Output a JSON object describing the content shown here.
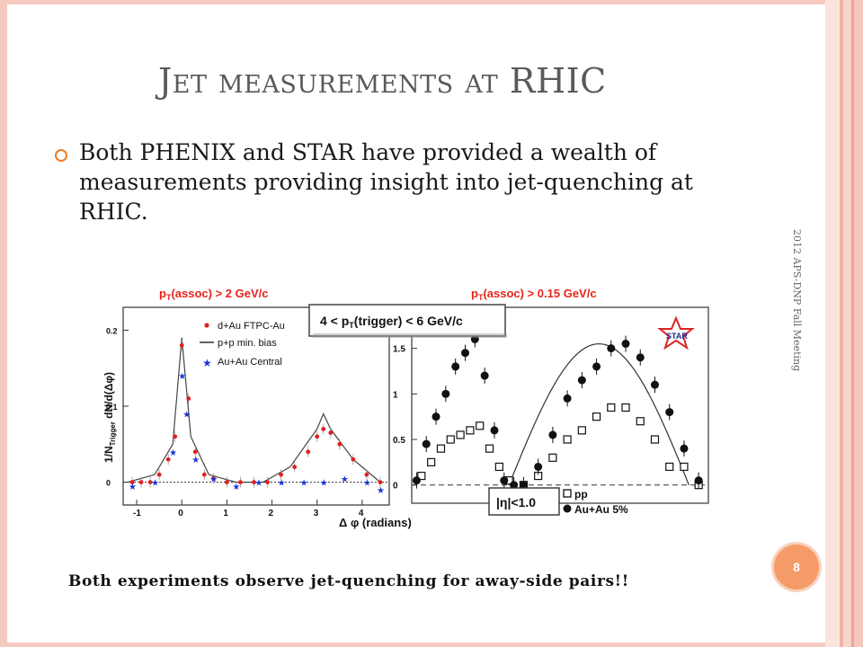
{
  "slide": {
    "title_first": "J",
    "title_rest": "et measurements at",
    "title_last": "RHIC",
    "bullet": "Both PHENIX and STAR have provided a wealth of measurements providing insight into jet-quenching at RHIC.",
    "side_footer": "2012 APS-DNP Fall Meeting",
    "page_number": "8",
    "caption": "Both experiments observe jet-quenching for away-side pairs!!"
  },
  "figure": {
    "left_panel_title": "p_T(assoc) > 2 GeV/c",
    "right_panel_title": "p_T(assoc) > 0.15 GeV/c",
    "trigger_box": "4 < p_T(trigger) < 6 GeV/c",
    "x_axis_label": "Δ φ (radians)",
    "left_y_label": "1/N_Trigger dN/d(Δφ)",
    "left_legend": [
      "d+Au FTPC-Au",
      "p+p min. bias",
      "Au+Au Central"
    ],
    "right_legend": [
      "pp",
      "Au+Au 5%"
    ],
    "eta_label": "|η|<1.0",
    "star_logo": "STAR",
    "colors": {
      "title_red": "#e8231a",
      "dAu": "#e02020",
      "AuAu_central": "#1a36d8",
      "accent_orange": "#f07a26"
    }
  },
  "chart_data": [
    {
      "type": "scatter",
      "title": "pT(assoc) > 2 GeV/c",
      "xlabel": "Δ φ (radians)",
      "ylabel": "1/N_Trigger dN/d(Δφ)",
      "xlim": [
        -1.3,
        4.6
      ],
      "ylim": [
        -0.03,
        0.23
      ],
      "x_ticks": [
        "-1",
        "0",
        "1",
        "2",
        "3",
        "4"
      ],
      "y_ticks": [
        "0",
        "0.1",
        "0.2"
      ],
      "series": [
        {
          "name": "d+Au FTPC-Au",
          "points": [
            [
              -1.1,
              0.0
            ],
            [
              -0.9,
              0.0
            ],
            [
              -0.7,
              0.0
            ],
            [
              -0.5,
              0.01
            ],
            [
              -0.3,
              0.03
            ],
            [
              -0.15,
              0.06
            ],
            [
              0.0,
              0.18
            ],
            [
              0.15,
              0.11
            ],
            [
              0.3,
              0.04
            ],
            [
              0.5,
              0.01
            ],
            [
              0.7,
              0.005
            ],
            [
              1.0,
              0.0
            ],
            [
              1.3,
              0.0
            ],
            [
              1.6,
              0.0
            ],
            [
              1.9,
              0.0
            ],
            [
              2.2,
              0.01
            ],
            [
              2.5,
              0.02
            ],
            [
              2.8,
              0.04
            ],
            [
              3.0,
              0.06
            ],
            [
              3.14,
              0.07
            ],
            [
              3.3,
              0.065
            ],
            [
              3.5,
              0.05
            ],
            [
              3.8,
              0.03
            ],
            [
              4.1,
              0.01
            ],
            [
              4.4,
              0.0
            ]
          ]
        },
        {
          "name": "p+p min. bias",
          "points": [
            [
              -1.2,
              0.0
            ],
            [
              -0.6,
              0.01
            ],
            [
              -0.2,
              0.05
            ],
            [
              0.0,
              0.19
            ],
            [
              0.2,
              0.06
            ],
            [
              0.6,
              0.01
            ],
            [
              1.2,
              0.0
            ],
            [
              1.8,
              0.0
            ],
            [
              2.4,
              0.02
            ],
            [
              3.0,
              0.07
            ],
            [
              3.14,
              0.09
            ],
            [
              3.3,
              0.07
            ],
            [
              3.8,
              0.03
            ],
            [
              4.4,
              0.0
            ]
          ]
        },
        {
          "name": "Au+Au Central",
          "points": [
            [
              -1.1,
              -0.005
            ],
            [
              -0.6,
              0.0
            ],
            [
              -0.2,
              0.04
            ],
            [
              0.0,
              0.14
            ],
            [
              0.1,
              0.09
            ],
            [
              0.3,
              0.03
            ],
            [
              0.7,
              0.005
            ],
            [
              1.2,
              -0.005
            ],
            [
              1.7,
              0.0
            ],
            [
              2.2,
              0.0
            ],
            [
              2.7,
              0.0
            ],
            [
              3.14,
              0.0
            ],
            [
              3.6,
              0.005
            ],
            [
              4.1,
              0.0
            ],
            [
              4.4,
              -0.01
            ]
          ]
        }
      ]
    },
    {
      "type": "scatter",
      "title": "pT(assoc) > 0.15 GeV/c",
      "xlabel": "Δ φ (radians)",
      "xlim": [
        -1.4,
        4.7
      ],
      "ylim": [
        -0.2,
        1.95
      ],
      "y_ticks": [
        "0",
        "0.5",
        "1",
        "1.5"
      ],
      "series": [
        {
          "name": "pp",
          "points": [
            [
              -1.2,
              0.1
            ],
            [
              -1.0,
              0.25
            ],
            [
              -0.8,
              0.4
            ],
            [
              -0.6,
              0.5
            ],
            [
              -0.4,
              0.55
            ],
            [
              -0.2,
              0.6
            ],
            [
              0.0,
              0.65
            ],
            [
              0.2,
              0.4
            ],
            [
              0.4,
              0.2
            ],
            [
              0.6,
              0.05
            ],
            [
              0.9,
              0.0
            ],
            [
              1.2,
              0.1
            ],
            [
              1.5,
              0.3
            ],
            [
              1.8,
              0.5
            ],
            [
              2.1,
              0.6
            ],
            [
              2.4,
              0.75
            ],
            [
              2.7,
              0.85
            ],
            [
              3.0,
              0.85
            ],
            [
              3.3,
              0.7
            ],
            [
              3.6,
              0.5
            ],
            [
              3.9,
              0.2
            ],
            [
              4.2,
              0.2
            ],
            [
              4.5,
              0.0
            ]
          ]
        },
        {
          "name": "Au+Au 5%",
          "points": [
            [
              -1.3,
              0.05
            ],
            [
              -1.1,
              0.45
            ],
            [
              -0.9,
              0.75
            ],
            [
              -0.7,
              1.0
            ],
            [
              -0.5,
              1.3
            ],
            [
              -0.3,
              1.45
            ],
            [
              -0.1,
              1.6
            ],
            [
              0.1,
              1.2
            ],
            [
              0.3,
              0.6
            ],
            [
              0.5,
              0.05
            ],
            [
              0.7,
              0.0
            ],
            [
              0.9,
              0.0
            ],
            [
              1.2,
              0.2
            ],
            [
              1.5,
              0.55
            ],
            [
              1.8,
              0.95
            ],
            [
              2.1,
              1.15
            ],
            [
              2.4,
              1.3
            ],
            [
              2.7,
              1.5
            ],
            [
              3.0,
              1.55
            ],
            [
              3.3,
              1.4
            ],
            [
              3.6,
              1.1
            ],
            [
              3.9,
              0.8
            ],
            [
              4.2,
              0.4
            ],
            [
              4.5,
              0.05
            ]
          ]
        }
      ]
    }
  ]
}
